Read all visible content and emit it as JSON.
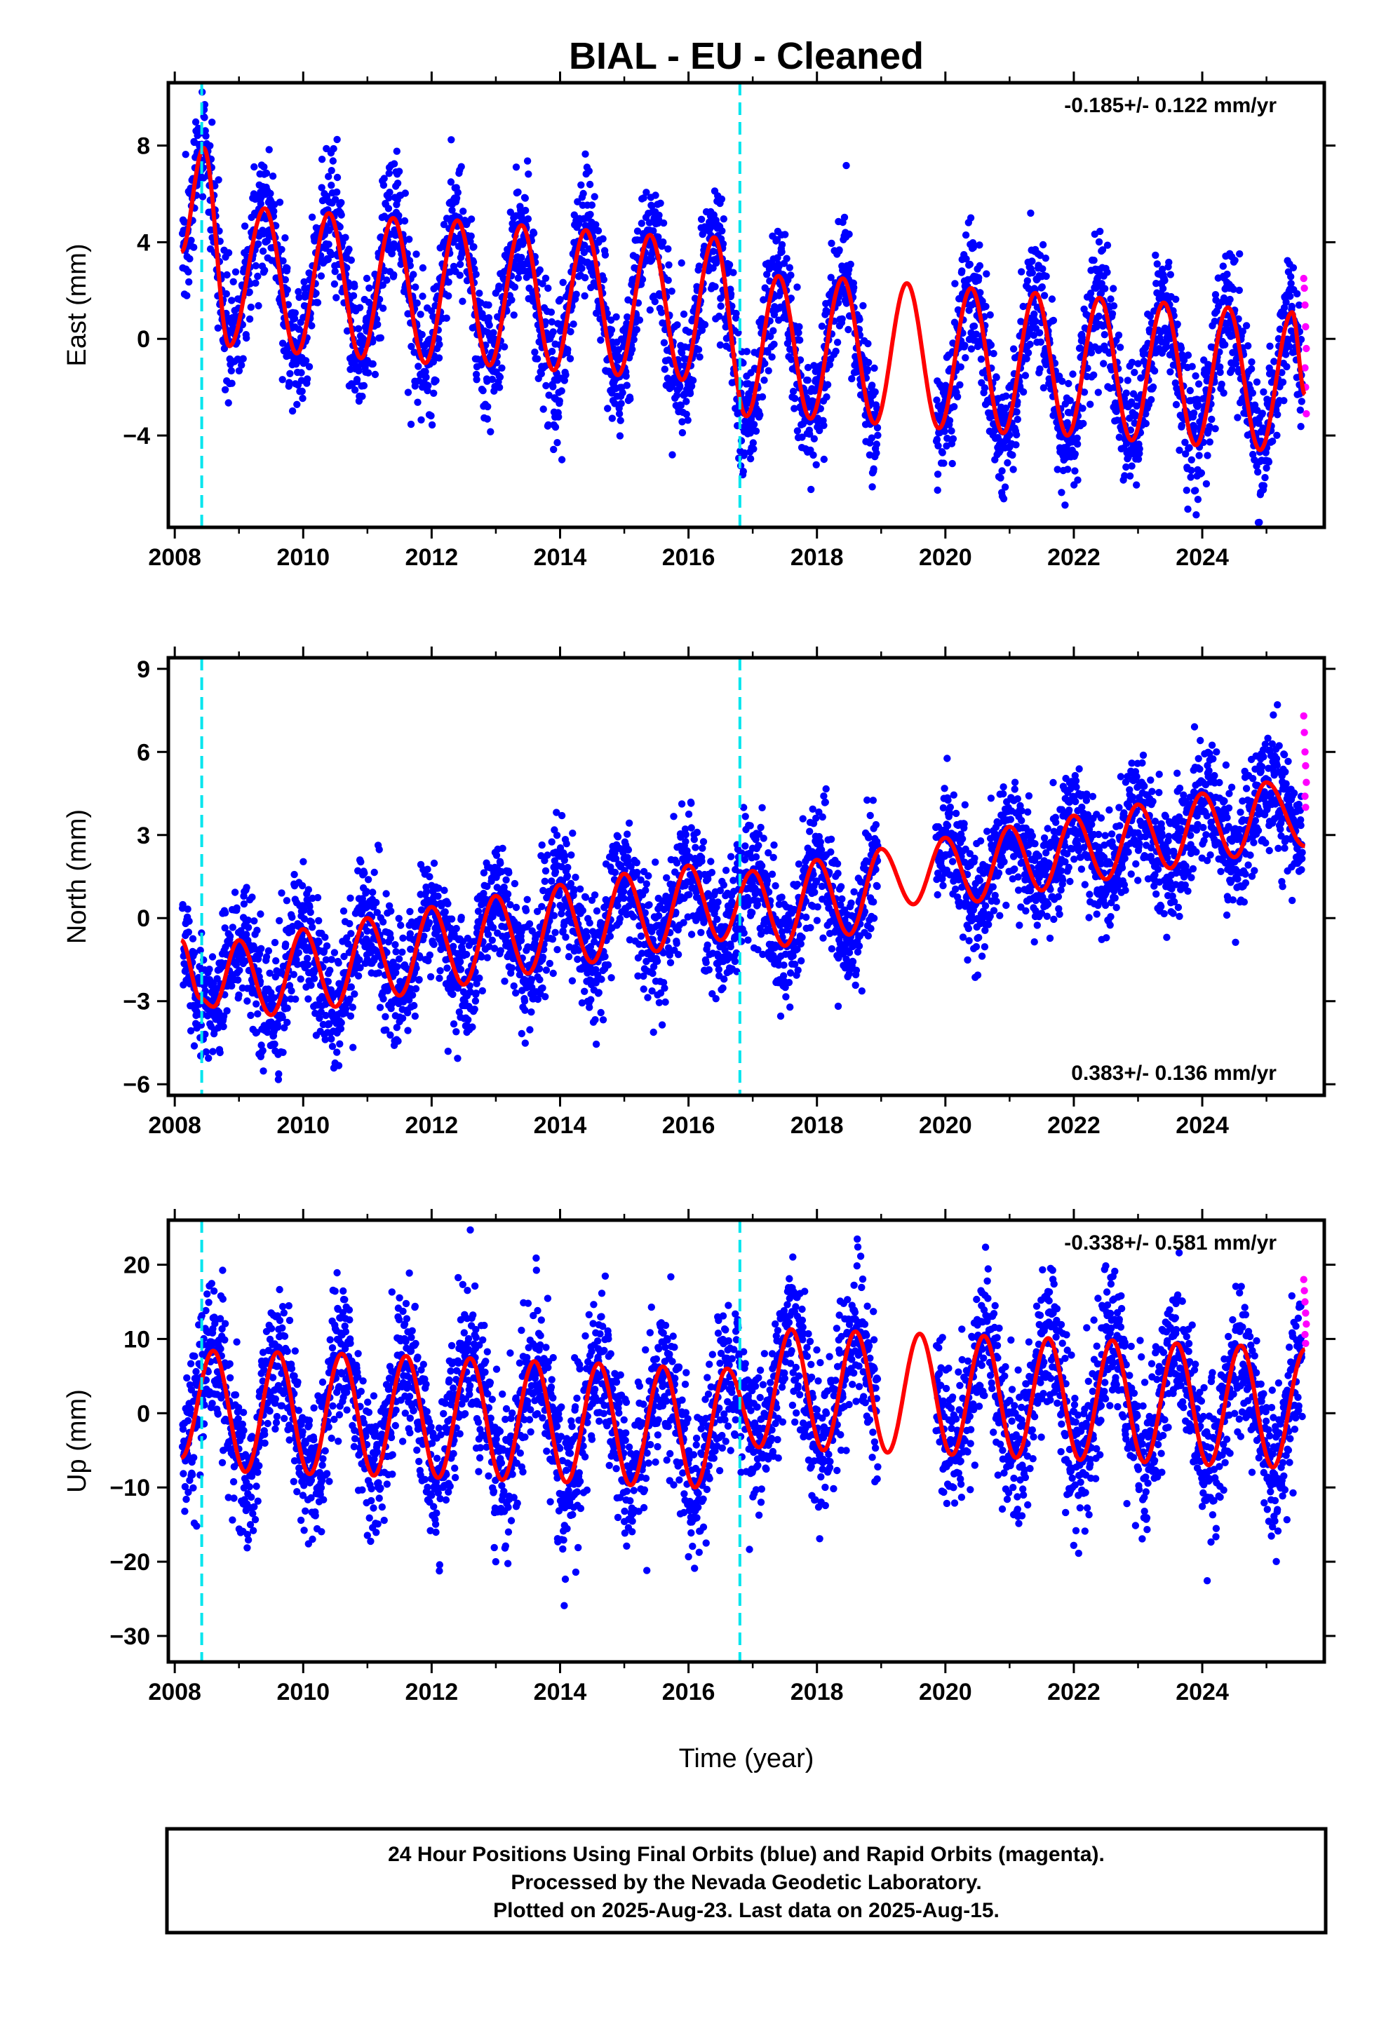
{
  "chart_data": {
    "type": "scatter",
    "title": "BIAL  - EU - Cleaned",
    "xlabel": "Time (year)",
    "x_ticks": [
      2008,
      2010,
      2012,
      2014,
      2016,
      2018,
      2020,
      2022,
      2024
    ],
    "xlim": [
      2007.9,
      2025.9
    ],
    "equipment_change_epochs": [
      2008.42,
      2016.8
    ],
    "colors": {
      "final_orbits": "#0000ff",
      "rapid_orbits": "#ff00ff",
      "model_fit": "#ff0000",
      "steps": "#00e5ee"
    },
    "panels": [
      {
        "component": "east",
        "ylabel": "East (mm)",
        "ylim": [
          -7.8,
          10.6
        ],
        "y_ticks": [
          -4,
          0,
          4,
          8
        ],
        "rate_label": "-0.185+/- 0.122 mm/yr",
        "rate_position": "top-right",
        "fit_model": {
          "offset": 2.2,
          "rate_mm_per_yr": -0.185,
          "annual_amplitude": 3.4,
          "semiannual_amplitude": 0.5,
          "peak_phase_year_fraction": 0.42
        },
        "fit_curve": [
          {
            "x": 2008.1,
            "y": 3.6
          },
          {
            "x": 2008.45,
            "y": 7.9
          },
          {
            "x": 2008.85,
            "y": -0.3
          },
          {
            "x": 2009.4,
            "y": 5.4
          },
          {
            "x": 2009.9,
            "y": -0.6
          },
          {
            "x": 2010.4,
            "y": 5.2
          },
          {
            "x": 2010.9,
            "y": -0.8
          },
          {
            "x": 2011.4,
            "y": 5.0
          },
          {
            "x": 2011.9,
            "y": -1.0
          },
          {
            "x": 2012.4,
            "y": 4.9
          },
          {
            "x": 2012.9,
            "y": -1.1
          },
          {
            "x": 2013.4,
            "y": 4.7
          },
          {
            "x": 2013.9,
            "y": -1.3
          },
          {
            "x": 2014.4,
            "y": 4.5
          },
          {
            "x": 2014.9,
            "y": -1.5
          },
          {
            "x": 2015.4,
            "y": 4.3
          },
          {
            "x": 2015.9,
            "y": -1.7
          },
          {
            "x": 2016.4,
            "y": 4.2
          },
          {
            "x": 2016.9,
            "y": -3.2
          },
          {
            "x": 2017.4,
            "y": 2.6
          },
          {
            "x": 2017.9,
            "y": -3.3
          },
          {
            "x": 2018.4,
            "y": 2.5
          },
          {
            "x": 2018.9,
            "y": -3.5
          },
          {
            "x": 2019.4,
            "y": 2.3
          },
          {
            "x": 2019.9,
            "y": -3.7
          },
          {
            "x": 2020.4,
            "y": 2.1
          },
          {
            "x": 2020.9,
            "y": -3.9
          },
          {
            "x": 2021.4,
            "y": 1.9
          },
          {
            "x": 2021.9,
            "y": -4.0
          },
          {
            "x": 2022.4,
            "y": 1.7
          },
          {
            "x": 2022.9,
            "y": -4.2
          },
          {
            "x": 2023.4,
            "y": 1.5
          },
          {
            "x": 2023.9,
            "y": -4.4
          },
          {
            "x": 2024.4,
            "y": 1.3
          },
          {
            "x": 2024.9,
            "y": -4.6
          },
          {
            "x": 2025.4,
            "y": 1.1
          },
          {
            "x": 2025.6,
            "y": -2.3
          }
        ],
        "scatter_sd": 1.3,
        "rapid_points": [
          {
            "x": 2025.58,
            "y": 2.5
          },
          {
            "x": 2025.59,
            "y": 2.1
          },
          {
            "x": 2025.6,
            "y": 1.4
          },
          {
            "x": 2025.61,
            "y": 0.5
          },
          {
            "x": 2025.62,
            "y": -0.4
          },
          {
            "x": 2025.6,
            "y": -1.2
          },
          {
            "x": 2025.61,
            "y": -2.0
          },
          {
            "x": 2025.62,
            "y": -3.1
          }
        ]
      },
      {
        "component": "north",
        "ylabel": "North (mm)",
        "ylim": [
          -6.4,
          9.4
        ],
        "y_ticks": [
          -6,
          -3,
          0,
          3,
          6,
          9
        ],
        "rate_label": "0.383+/- 0.136 mm/yr",
        "rate_position": "bottom-right",
        "fit_model": {
          "offset": -2.0,
          "rate_mm_per_yr": 0.383,
          "annual_amplitude": 1.0,
          "semiannual_amplitude": 0.9
        },
        "fit_curve": [
          {
            "x": 2008.1,
            "y": -0.8
          },
          {
            "x": 2008.4,
            "y": -2.9
          },
          {
            "x": 2008.6,
            "y": -3.2
          },
          {
            "x": 2009.0,
            "y": -0.8
          },
          {
            "x": 2009.5,
            "y": -3.5
          },
          {
            "x": 2010.0,
            "y": -0.4
          },
          {
            "x": 2010.5,
            "y": -3.2
          },
          {
            "x": 2011.0,
            "y": 0.0
          },
          {
            "x": 2011.5,
            "y": -2.8
          },
          {
            "x": 2012.0,
            "y": 0.4
          },
          {
            "x": 2012.5,
            "y": -2.4
          },
          {
            "x": 2013.0,
            "y": 0.8
          },
          {
            "x": 2013.5,
            "y": -2.0
          },
          {
            "x": 2014.0,
            "y": 1.2
          },
          {
            "x": 2014.5,
            "y": -1.6
          },
          {
            "x": 2015.0,
            "y": 1.6
          },
          {
            "x": 2015.5,
            "y": -1.2
          },
          {
            "x": 2016.0,
            "y": 1.9
          },
          {
            "x": 2016.5,
            "y": -0.8
          },
          {
            "x": 2017.0,
            "y": 1.7
          },
          {
            "x": 2017.5,
            "y": -1.0
          },
          {
            "x": 2018.0,
            "y": 2.1
          },
          {
            "x": 2018.5,
            "y": -0.6
          },
          {
            "x": 2019.0,
            "y": 2.5
          },
          {
            "x": 2019.5,
            "y": 0.5
          },
          {
            "x": 2020.0,
            "y": 2.9
          },
          {
            "x": 2020.5,
            "y": 0.6
          },
          {
            "x": 2021.0,
            "y": 3.3
          },
          {
            "x": 2021.5,
            "y": 1.0
          },
          {
            "x": 2022.0,
            "y": 3.7
          },
          {
            "x": 2022.5,
            "y": 1.4
          },
          {
            "x": 2023.0,
            "y": 4.1
          },
          {
            "x": 2023.5,
            "y": 1.8
          },
          {
            "x": 2024.0,
            "y": 4.5
          },
          {
            "x": 2024.5,
            "y": 2.2
          },
          {
            "x": 2025.0,
            "y": 4.9
          },
          {
            "x": 2025.6,
            "y": 2.6
          }
        ],
        "scatter_sd": 1.1,
        "rapid_points": [
          {
            "x": 2025.58,
            "y": 7.3
          },
          {
            "x": 2025.59,
            "y": 6.7
          },
          {
            "x": 2025.6,
            "y": 6.0
          },
          {
            "x": 2025.61,
            "y": 5.5
          },
          {
            "x": 2025.62,
            "y": 4.9
          },
          {
            "x": 2025.6,
            "y": 4.4
          },
          {
            "x": 2025.61,
            "y": 4.0
          }
        ]
      },
      {
        "component": "up",
        "ylabel": "Up (mm)",
        "ylim": [
          -33.5,
          26
        ],
        "y_ticks": [
          -30,
          -20,
          -10,
          0,
          10,
          20
        ],
        "rate_label": "-0.338+/- 0.581 mm/yr",
        "rate_position": "top-right",
        "fit_model": {
          "offset": 0.0,
          "rate_mm_per_yr": -0.338,
          "annual_amplitude": 8.2,
          "semiannual_amplitude": 0.8,
          "peak_phase_year_fraction": 0.6
        },
        "fit_curve": [
          {
            "x": 2008.1,
            "y": -6.0
          },
          {
            "x": 2008.6,
            "y": 8.4
          },
          {
            "x": 2009.1,
            "y": -7.9
          },
          {
            "x": 2009.6,
            "y": 8.2
          },
          {
            "x": 2010.1,
            "y": -8.2
          },
          {
            "x": 2010.6,
            "y": 8.0
          },
          {
            "x": 2011.1,
            "y": -8.4
          },
          {
            "x": 2011.6,
            "y": 7.7
          },
          {
            "x": 2012.1,
            "y": -8.7
          },
          {
            "x": 2012.6,
            "y": 7.4
          },
          {
            "x": 2013.1,
            "y": -9.0
          },
          {
            "x": 2013.6,
            "y": 7.0
          },
          {
            "x": 2014.1,
            "y": -9.3
          },
          {
            "x": 2014.6,
            "y": 6.7
          },
          {
            "x": 2015.1,
            "y": -9.7
          },
          {
            "x": 2015.6,
            "y": 6.3
          },
          {
            "x": 2016.1,
            "y": -10.0
          },
          {
            "x": 2016.6,
            "y": 6.0
          },
          {
            "x": 2017.1,
            "y": -4.6
          },
          {
            "x": 2017.6,
            "y": 11.3
          },
          {
            "x": 2018.1,
            "y": -5.0
          },
          {
            "x": 2018.6,
            "y": 11.0
          },
          {
            "x": 2019.1,
            "y": -5.3
          },
          {
            "x": 2019.6,
            "y": 10.7
          },
          {
            "x": 2020.1,
            "y": -5.6
          },
          {
            "x": 2020.6,
            "y": 10.4
          },
          {
            "x": 2021.1,
            "y": -6.0
          },
          {
            "x": 2021.6,
            "y": 10.1
          },
          {
            "x": 2022.1,
            "y": -6.3
          },
          {
            "x": 2022.6,
            "y": 9.8
          },
          {
            "x": 2023.1,
            "y": -6.6
          },
          {
            "x": 2023.6,
            "y": 9.4
          },
          {
            "x": 2024.1,
            "y": -7.0
          },
          {
            "x": 2024.6,
            "y": 9.1
          },
          {
            "x": 2025.1,
            "y": -7.3
          },
          {
            "x": 2025.6,
            "y": 8.6
          }
        ],
        "scatter_sd": 5.0,
        "rapid_points": [
          {
            "x": 2025.58,
            "y": 18.0
          },
          {
            "x": 2025.59,
            "y": 16.5
          },
          {
            "x": 2025.6,
            "y": 15.0
          },
          {
            "x": 2025.61,
            "y": 13.5
          },
          {
            "x": 2025.62,
            "y": 12.0
          },
          {
            "x": 2025.6,
            "y": 10.6
          },
          {
            "x": 2025.61,
            "y": 9.4
          }
        ]
      }
    ]
  },
  "footer": {
    "line1": "24 Hour Positions Using Final Orbits (blue) and Rapid Orbits (magenta).",
    "line2": "Processed by the Nevada Geodetic Laboratory.",
    "line3": "Plotted on 2025-Aug-23. Last data on 2025-Aug-15."
  }
}
